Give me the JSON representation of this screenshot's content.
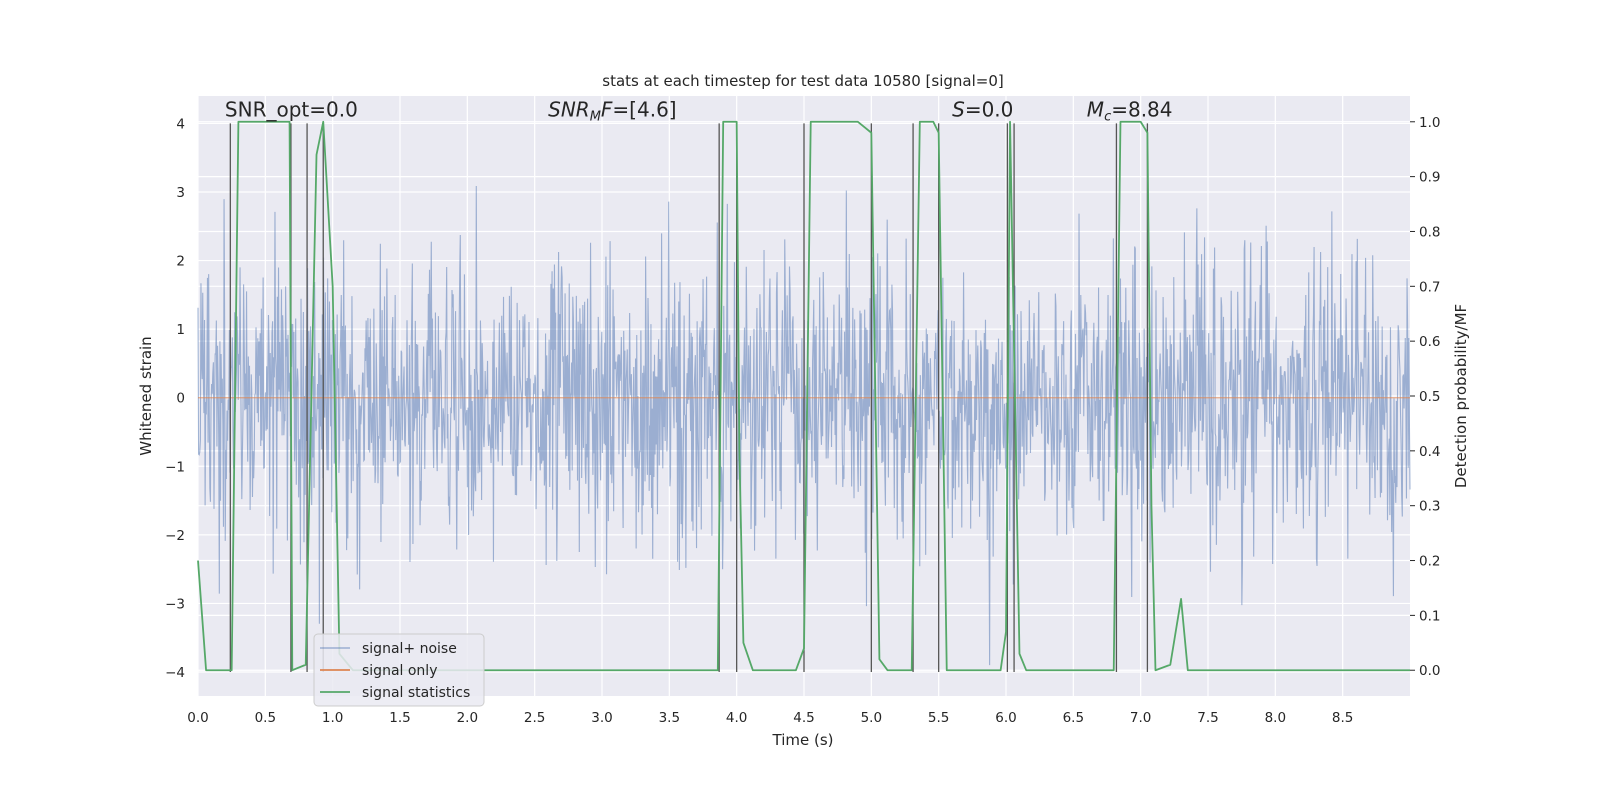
{
  "chart_data": {
    "type": "line",
    "title": "stats at each timestep for test data 10580 [signal=0]",
    "xlabel": "Time (s)",
    "ylabel": "Whitened strain",
    "ylabel_right": "Detection probability/MF",
    "xlim": [
      0.0,
      9.0
    ],
    "ylim": [
      -4.35,
      4.4
    ],
    "ylim_right": [
      -0.047,
      1.047
    ],
    "x_ticks": [
      0.0,
      0.5,
      1.0,
      1.5,
      2.0,
      2.5,
      3.0,
      3.5,
      4.0,
      4.5,
      5.0,
      5.5,
      6.0,
      6.5,
      7.0,
      7.5,
      8.0,
      8.5
    ],
    "x_tick_labels": [
      "0.0",
      "0.5",
      "1.0",
      "1.5",
      "2.0",
      "2.5",
      "3.0",
      "3.5",
      "4.0",
      "4.5",
      "5.0",
      "5.5",
      "6.0",
      "6.5",
      "7.0",
      "7.5",
      "8.0",
      "8.5"
    ],
    "y_ticks": [
      4,
      3,
      2,
      1,
      0,
      -1,
      -2,
      -3,
      -4
    ],
    "y_tick_labels": [
      "4",
      "3",
      "2",
      "1",
      "0",
      "−1",
      "−2",
      "−3",
      "−4"
    ],
    "y_right_ticks": [
      1.0,
      0.9,
      0.8,
      0.7,
      0.6,
      0.5,
      0.4,
      0.3,
      0.2,
      0.1,
      0.0
    ],
    "y_right_tick_labels": [
      "1.0",
      "0.9",
      "0.8",
      "0.7",
      "0.6",
      "0.5",
      "0.4",
      "0.3",
      "0.2",
      "0.1",
      "0.0"
    ],
    "annotations": [
      {
        "x": 0.2,
        "y": 4.1,
        "parts": [
          {
            "text": "SNR_opt=0.0",
            "italic": false
          }
        ]
      },
      {
        "x": 2.6,
        "y": 4.1,
        "parts": [
          {
            "text": "SNR",
            "italic": true
          },
          {
            "text": "M",
            "italic": true,
            "sub": true
          },
          {
            "text": "F",
            "italic": true
          },
          {
            "text": "=[4.6]",
            "italic": false
          }
        ]
      },
      {
        "x": 5.6,
        "y": 4.1,
        "parts": [
          {
            "text": "S",
            "italic": true
          },
          {
            "text": "=0.0",
            "italic": false
          }
        ]
      },
      {
        "x": 6.6,
        "y": 4.1,
        "parts": [
          {
            "text": "M",
            "italic": true
          },
          {
            "text": "c",
            "italic": true,
            "sub": true
          },
          {
            "text": "=8.84",
            "italic": false
          }
        ]
      }
    ],
    "series": [
      {
        "name": "signal+ noise",
        "color": "#4c72b0",
        "kind": "noise",
        "amplitude_sigma": 1.0,
        "samples": 2048
      },
      {
        "name": "signal only",
        "color": "#dd8452",
        "kind": "flat",
        "value": 0.0
      },
      {
        "name": "signal statistics",
        "color": "#55a868",
        "axis": "right",
        "x": [
          0.0,
          0.06,
          0.25,
          0.3,
          0.6,
          0.68,
          0.7,
          0.8,
          0.88,
          0.93,
          1.0,
          1.05,
          1.15,
          1.5,
          2.0,
          2.2,
          3.0,
          3.86,
          3.9,
          4.0,
          4.02,
          4.05,
          4.12,
          4.44,
          4.5,
          4.55,
          4.9,
          5.0,
          5.06,
          5.12,
          5.3,
          5.36,
          5.46,
          5.5,
          5.56,
          5.65,
          5.75,
          5.96,
          6.0,
          6.03,
          6.1,
          6.15,
          6.2,
          6.3,
          6.4,
          6.8,
          6.85,
          7.0,
          7.05,
          7.08,
          7.11,
          7.22,
          7.3,
          7.35,
          7.4,
          9.0
        ],
        "y": [
          0.2,
          0.0,
          0.0,
          1.0,
          1.0,
          1.0,
          0.0,
          0.01,
          0.94,
          1.0,
          0.7,
          0.03,
          0.0,
          0.0,
          0.0,
          0.0,
          0.0,
          0.0,
          1.0,
          1.0,
          0.4,
          0.05,
          0.0,
          0.0,
          0.04,
          1.0,
          1.0,
          0.98,
          0.02,
          0.0,
          0.0,
          1.0,
          1.0,
          0.98,
          0.0,
          0.0,
          0.0,
          0.0,
          0.07,
          1.0,
          0.03,
          0.0,
          0.0,
          0.0,
          0.0,
          0.0,
          1.0,
          1.0,
          0.98,
          0.3,
          0.0,
          0.01,
          0.13,
          0.0,
          0.0,
          0.0
        ]
      }
    ],
    "vertical_lines_x": [
      0.24,
      0.69,
      0.81,
      0.93,
      3.87,
      4.0,
      4.5,
      5.0,
      5.31,
      5.5,
      6.01,
      6.06,
      6.82,
      7.05
    ],
    "vertical_line_color": "#555555",
    "legend": {
      "position": "lower-left",
      "entries": [
        "signal+ noise",
        "signal only",
        "signal statistics"
      ]
    }
  },
  "colors": {
    "plot_bg": "#eaeaf2",
    "grid": "#ffffff",
    "text": "#262626"
  }
}
